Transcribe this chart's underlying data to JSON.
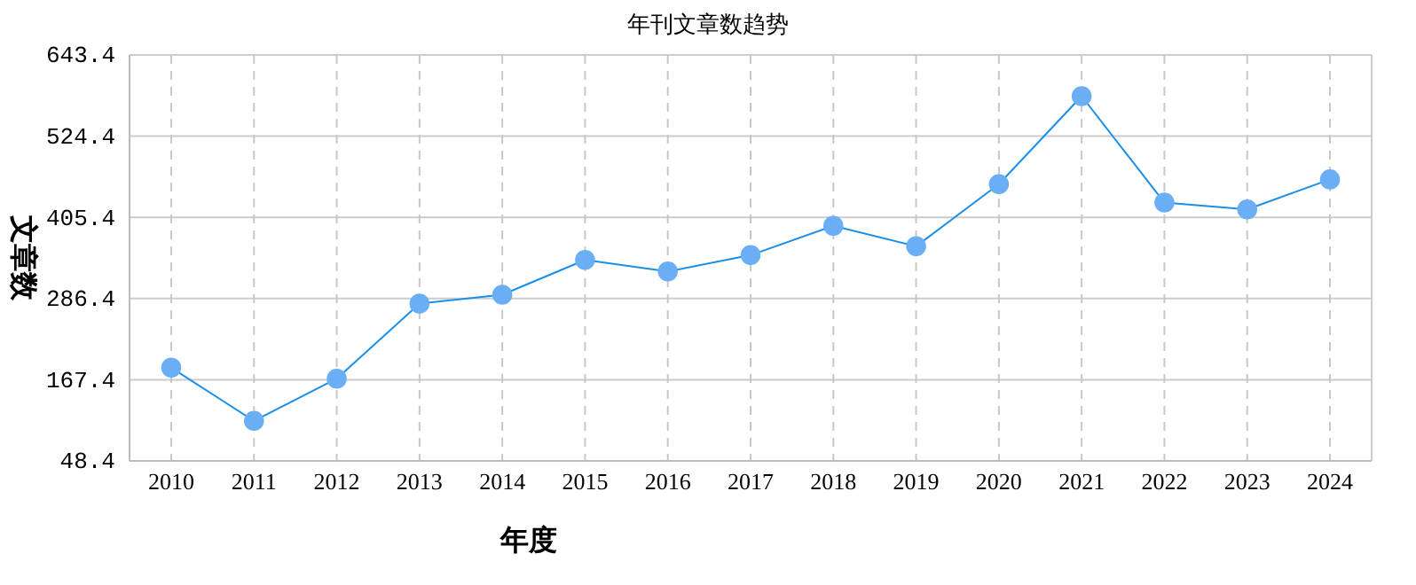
{
  "chart_data": {
    "type": "line",
    "title": "年刊文章数趋势",
    "xlabel": "年度",
    "ylabel": "文章数",
    "categories": [
      "2010",
      "2011",
      "2012",
      "2013",
      "2014",
      "2015",
      "2016",
      "2017",
      "2018",
      "2019",
      "2020",
      "2021",
      "2022",
      "2023",
      "2024"
    ],
    "series": [
      {
        "color": "#1a8fe8",
        "values": [
          185,
          107,
          169,
          279,
          292,
          343,
          326,
          350,
          393,
          363,
          454,
          583,
          427,
          417,
          461
        ]
      }
    ],
    "ylim": [
      48.4,
      643.4
    ],
    "yticks": [
      48.4,
      167.4,
      286.4,
      405.4,
      524.4,
      643.4
    ],
    "grid": true,
    "marker": "circle",
    "line_style": "solid"
  }
}
